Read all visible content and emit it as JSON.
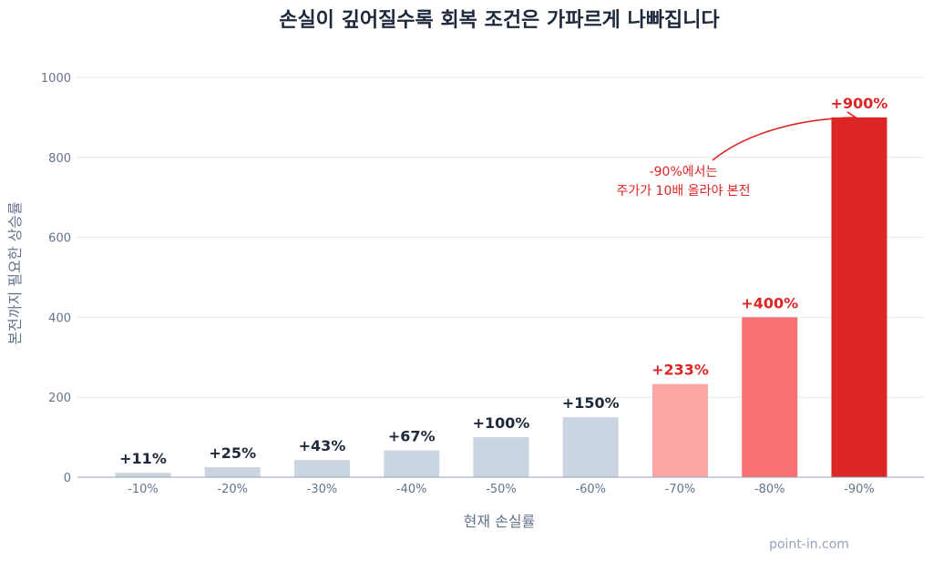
{
  "title": "손실이 깊어질수록 회복 조건은 가파르게 나빠집니다",
  "watermark": "point-in.com",
  "annotation": {
    "line1": "-90%에서는",
    "line2": "주가가 10배 올라야 본전",
    "color": "#dc2626"
  },
  "chart_data": {
    "type": "bar",
    "title": "손실이 깊어질수록 회복 조건은 가파르게 나빠집니다",
    "xlabel": "현재 손실률",
    "ylabel": "본전까지 필요한 상승률",
    "categories": [
      "-10%",
      "-20%",
      "-30%",
      "-40%",
      "-50%",
      "-60%",
      "-70%",
      "-80%",
      "-90%"
    ],
    "values": [
      11,
      25,
      43,
      67,
      100,
      150,
      233,
      400,
      900
    ],
    "data_labels": [
      "+11%",
      "+25%",
      "+43%",
      "+67%",
      "+100%",
      "+150%",
      "+233%",
      "+400%",
      "+900%"
    ],
    "bar_colors": [
      "#cbd5e1",
      "#cbd5e1",
      "#cbd5e1",
      "#cbd5e1",
      "#cbd5e1",
      "#cbd5e1",
      "#fca5a5",
      "#f87171",
      "#dc2626"
    ],
    "label_colors": [
      "#1e293b",
      "#1e293b",
      "#1e293b",
      "#1e293b",
      "#1e293b",
      "#1e293b",
      "#dc2626",
      "#dc2626",
      "#dc2626"
    ],
    "ylim": [
      0,
      1000
    ],
    "yticks": [
      0,
      200,
      400,
      600,
      800,
      1000
    ],
    "grid": true,
    "legend": "none"
  }
}
